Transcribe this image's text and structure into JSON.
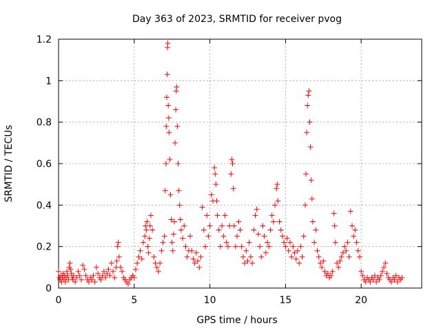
{
  "chart_data": {
    "type": "scatter",
    "title": "Day 363 of 2023, SRMTID for receiver pvog",
    "xlabel": "GPS time / hours",
    "ylabel": "SRMTID / TECUs",
    "xlim": [
      0,
      24
    ],
    "ylim": [
      0,
      1.2
    ],
    "x_ticks": [
      0,
      5,
      10,
      15,
      20
    ],
    "x_tick_labels": [
      "0",
      "5",
      "10",
      "15",
      "20"
    ],
    "y_ticks": [
      0,
      0.2,
      0.4,
      0.6,
      0.8,
      1.0,
      1.2
    ],
    "y_tick_labels": [
      "0",
      "0.2",
      "0.4",
      "0.6",
      "0.8",
      "1",
      "1.2"
    ],
    "grid": true,
    "marker": "+",
    "series": [
      {
        "name": "SRMTID",
        "color": "#ff0000",
        "points": [
          [
            0.0,
            0.08
          ],
          [
            0.05,
            0.05
          ],
          [
            0.1,
            0.04
          ],
          [
            0.15,
            0.06
          ],
          [
            0.2,
            0.03
          ],
          [
            0.25,
            0.05
          ],
          [
            0.3,
            0.07
          ],
          [
            0.35,
            0.04
          ],
          [
            0.4,
            0.06
          ],
          [
            0.45,
            0.03
          ],
          [
            0.5,
            0.05
          ],
          [
            0.55,
            0.08
          ],
          [
            0.6,
            0.06
          ],
          [
            0.65,
            0.04
          ],
          [
            0.7,
            0.1
          ],
          [
            0.75,
            0.12
          ],
          [
            0.8,
            0.09
          ],
          [
            0.85,
            0.07
          ],
          [
            0.9,
            0.05
          ],
          [
            0.95,
            0.04
          ],
          [
            1.0,
            0.06
          ],
          [
            1.1,
            0.03
          ],
          [
            1.2,
            0.05
          ],
          [
            1.3,
            0.08
          ],
          [
            1.4,
            0.06
          ],
          [
            1.5,
            0.04
          ],
          [
            1.6,
            0.11
          ],
          [
            1.7,
            0.09
          ],
          [
            1.8,
            0.06
          ],
          [
            1.9,
            0.04
          ],
          [
            2.0,
            0.03
          ],
          [
            2.1,
            0.05
          ],
          [
            2.2,
            0.04
          ],
          [
            2.3,
            0.06
          ],
          [
            2.4,
            0.03
          ],
          [
            2.5,
            0.1
          ],
          [
            2.6,
            0.07
          ],
          [
            2.7,
            0.05
          ],
          [
            2.8,
            0.04
          ],
          [
            2.9,
            0.06
          ],
          [
            3.0,
            0.08
          ],
          [
            3.1,
            0.05
          ],
          [
            3.2,
            0.07
          ],
          [
            3.3,
            0.09
          ],
          [
            3.4,
            0.06
          ],
          [
            3.5,
            0.12
          ],
          [
            3.6,
            0.08
          ],
          [
            3.7,
            0.05
          ],
          [
            3.8,
            0.1
          ],
          [
            3.85,
            0.13
          ],
          [
            3.9,
            0.2
          ],
          [
            3.95,
            0.22
          ],
          [
            4.0,
            0.15
          ],
          [
            4.1,
            0.1
          ],
          [
            4.2,
            0.08
          ],
          [
            4.3,
            0.05
          ],
          [
            4.4,
            0.04
          ],
          [
            4.5,
            0.03
          ],
          [
            4.6,
            0.02
          ],
          [
            4.7,
            0.04
          ],
          [
            4.8,
            0.05
          ],
          [
            4.9,
            0.06
          ],
          [
            5.0,
            0.05
          ],
          [
            5.1,
            0.09
          ],
          [
            5.2,
            0.12
          ],
          [
            5.3,
            0.15
          ],
          [
            5.4,
            0.18
          ],
          [
            5.5,
            0.14
          ],
          [
            5.6,
            0.22
          ],
          [
            5.7,
            0.25
          ],
          [
            5.75,
            0.3
          ],
          [
            5.8,
            0.28
          ],
          [
            5.85,
            0.32
          ],
          [
            5.9,
            0.2
          ],
          [
            5.95,
            0.17
          ],
          [
            6.0,
            0.24
          ],
          [
            6.05,
            0.3
          ],
          [
            6.1,
            0.35
          ],
          [
            6.2,
            0.28
          ],
          [
            6.3,
            0.15
          ],
          [
            6.4,
            0.12
          ],
          [
            6.5,
            0.1
          ],
          [
            6.6,
            0.08
          ],
          [
            6.7,
            0.12
          ],
          [
            6.8,
            0.18
          ],
          [
            6.9,
            0.22
          ],
          [
            7.0,
            0.25
          ],
          [
            7.05,
            0.47
          ],
          [
            7.1,
            0.6
          ],
          [
            7.12,
            0.78
          ],
          [
            7.15,
            0.92
          ],
          [
            7.18,
            1.03
          ],
          [
            7.2,
            1.16
          ],
          [
            7.22,
            1.18
          ],
          [
            7.25,
            0.88
          ],
          [
            7.28,
            0.82
          ],
          [
            7.3,
            0.75
          ],
          [
            7.35,
            0.62
          ],
          [
            7.4,
            0.45
          ],
          [
            7.45,
            0.33
          ],
          [
            7.5,
            0.22
          ],
          [
            7.55,
            0.18
          ],
          [
            7.6,
            0.26
          ],
          [
            7.65,
            0.32
          ],
          [
            7.7,
            0.7
          ],
          [
            7.75,
            0.86
          ],
          [
            7.78,
            0.95
          ],
          [
            7.8,
            0.97
          ],
          [
            7.85,
            0.78
          ],
          [
            7.9,
            0.6
          ],
          [
            7.95,
            0.47
          ],
          [
            8.0,
            0.4
          ],
          [
            8.05,
            0.33
          ],
          [
            8.1,
            0.28
          ],
          [
            8.2,
            0.24
          ],
          [
            8.3,
            0.3
          ],
          [
            8.4,
            0.2
          ],
          [
            8.5,
            0.15
          ],
          [
            8.6,
            0.18
          ],
          [
            8.7,
            0.25
          ],
          [
            8.8,
            0.18
          ],
          [
            8.9,
            0.14
          ],
          [
            9.0,
            0.12
          ],
          [
            9.1,
            0.17
          ],
          [
            9.2,
            0.13
          ],
          [
            9.3,
            0.1
          ],
          [
            9.4,
            0.15
          ],
          [
            9.5,
            0.39
          ],
          [
            9.6,
            0.28
          ],
          [
            9.7,
            0.2
          ],
          [
            9.8,
            0.35
          ],
          [
            9.9,
            0.25
          ],
          [
            10.0,
            0.3
          ],
          [
            10.1,
            0.45
          ],
          [
            10.2,
            0.42
          ],
          [
            10.3,
            0.58
          ],
          [
            10.35,
            0.55
          ],
          [
            10.4,
            0.5
          ],
          [
            10.45,
            0.42
          ],
          [
            10.5,
            0.35
          ],
          [
            10.6,
            0.28
          ],
          [
            10.7,
            0.2
          ],
          [
            10.8,
            0.3
          ],
          [
            10.9,
            0.25
          ],
          [
            11.0,
            0.35
          ],
          [
            11.1,
            0.22
          ],
          [
            11.2,
            0.2
          ],
          [
            11.3,
            0.3
          ],
          [
            11.4,
            0.55
          ],
          [
            11.45,
            0.62
          ],
          [
            11.5,
            0.6
          ],
          [
            11.55,
            0.48
          ],
          [
            11.6,
            0.3
          ],
          [
            11.7,
            0.2
          ],
          [
            11.8,
            0.25
          ],
          [
            11.9,
            0.32
          ],
          [
            12.0,
            0.28
          ],
          [
            12.1,
            0.2
          ],
          [
            12.2,
            0.15
          ],
          [
            12.3,
            0.12
          ],
          [
            12.4,
            0.18
          ],
          [
            12.5,
            0.13
          ],
          [
            12.6,
            0.22
          ],
          [
            12.7,
            0.15
          ],
          [
            12.8,
            0.12
          ],
          [
            12.9,
            0.28
          ],
          [
            13.0,
            0.35
          ],
          [
            13.1,
            0.38
          ],
          [
            13.2,
            0.26
          ],
          [
            13.3,
            0.2
          ],
          [
            13.4,
            0.15
          ],
          [
            13.5,
            0.3
          ],
          [
            13.6,
            0.25
          ],
          [
            13.7,
            0.17
          ],
          [
            13.8,
            0.22
          ],
          [
            13.9,
            0.2
          ],
          [
            14.0,
            0.28
          ],
          [
            14.1,
            0.35
          ],
          [
            14.2,
            0.32
          ],
          [
            14.3,
            0.4
          ],
          [
            14.4,
            0.48
          ],
          [
            14.45,
            0.5
          ],
          [
            14.5,
            0.42
          ],
          [
            14.6,
            0.32
          ],
          [
            14.7,
            0.28
          ],
          [
            14.8,
            0.25
          ],
          [
            14.9,
            0.22
          ],
          [
            15.0,
            0.2
          ],
          [
            15.1,
            0.24
          ],
          [
            15.2,
            0.18
          ],
          [
            15.3,
            0.22
          ],
          [
            15.4,
            0.15
          ],
          [
            15.5,
            0.2
          ],
          [
            15.6,
            0.17
          ],
          [
            15.7,
            0.14
          ],
          [
            15.8,
            0.18
          ],
          [
            15.9,
            0.12
          ],
          [
            16.0,
            0.2
          ],
          [
            16.1,
            0.15
          ],
          [
            16.2,
            0.25
          ],
          [
            16.3,
            0.4
          ],
          [
            16.35,
            0.55
          ],
          [
            16.4,
            0.75
          ],
          [
            16.45,
            0.88
          ],
          [
            16.5,
            0.93
          ],
          [
            16.55,
            0.95
          ],
          [
            16.6,
            0.8
          ],
          [
            16.65,
            0.68
          ],
          [
            16.7,
            0.52
          ],
          [
            16.75,
            0.43
          ],
          [
            16.8,
            0.32
          ],
          [
            16.9,
            0.22
          ],
          [
            17.0,
            0.28
          ],
          [
            17.1,
            0.18
          ],
          [
            17.2,
            0.15
          ],
          [
            17.3,
            0.12
          ],
          [
            17.4,
            0.1
          ],
          [
            17.5,
            0.13
          ],
          [
            17.6,
            0.08
          ],
          [
            17.7,
            0.06
          ],
          [
            17.8,
            0.07
          ],
          [
            17.9,
            0.05
          ],
          [
            18.0,
            0.06
          ],
          [
            18.1,
            0.08
          ],
          [
            18.2,
            0.36
          ],
          [
            18.25,
            0.3
          ],
          [
            18.3,
            0.22
          ],
          [
            18.4,
            0.12
          ],
          [
            18.5,
            0.1
          ],
          [
            18.6,
            0.13
          ],
          [
            18.7,
            0.15
          ],
          [
            18.8,
            0.17
          ],
          [
            18.9,
            0.2
          ],
          [
            19.0,
            0.18
          ],
          [
            19.1,
            0.22
          ],
          [
            19.2,
            0.15
          ],
          [
            19.3,
            0.37
          ],
          [
            19.4,
            0.3
          ],
          [
            19.5,
            0.25
          ],
          [
            19.6,
            0.28
          ],
          [
            19.7,
            0.22
          ],
          [
            19.8,
            0.18
          ],
          [
            19.9,
            0.15
          ],
          [
            20.0,
            0.08
          ],
          [
            20.1,
            0.06
          ],
          [
            20.2,
            0.04
          ],
          [
            20.3,
            0.03
          ],
          [
            20.4,
            0.05
          ],
          [
            20.5,
            0.04
          ],
          [
            20.6,
            0.03
          ],
          [
            20.7,
            0.05
          ],
          [
            20.8,
            0.04
          ],
          [
            20.9,
            0.06
          ],
          [
            21.0,
            0.03
          ],
          [
            21.1,
            0.05
          ],
          [
            21.2,
            0.04
          ],
          [
            21.3,
            0.06
          ],
          [
            21.4,
            0.08
          ],
          [
            21.5,
            0.1
          ],
          [
            21.6,
            0.12
          ],
          [
            21.7,
            0.07
          ],
          [
            21.8,
            0.05
          ],
          [
            21.9,
            0.04
          ],
          [
            22.0,
            0.03
          ],
          [
            22.1,
            0.05
          ],
          [
            22.2,
            0.04
          ],
          [
            22.3,
            0.06
          ],
          [
            22.4,
            0.03
          ],
          [
            22.5,
            0.05
          ],
          [
            22.6,
            0.04
          ],
          [
            22.7,
            0.05
          ]
        ]
      }
    ]
  }
}
